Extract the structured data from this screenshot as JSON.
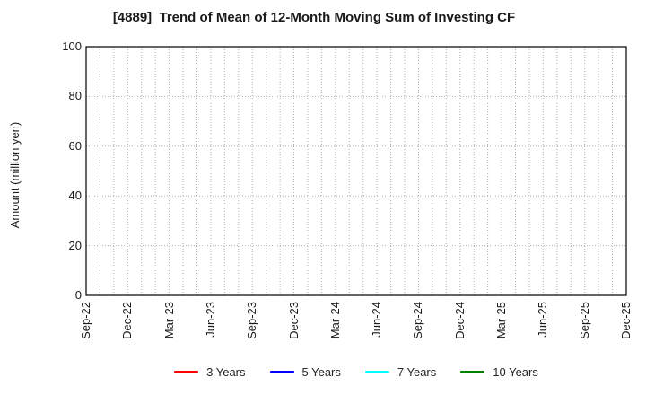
{
  "chart_data": {
    "type": "line",
    "title": "[4889]  Trend of Mean of 12-Month Moving Sum of Investing CF",
    "ylabel": "Amount (million yen)",
    "ylim": [
      0,
      100
    ],
    "yticks": [
      0,
      20,
      40,
      60,
      80,
      100
    ],
    "x_tick_labels": [
      "Sep-22",
      "Dec-22",
      "Mar-23",
      "Jun-23",
      "Sep-23",
      "Dec-23",
      "Mar-24",
      "Jun-24",
      "Sep-24",
      "Dec-24",
      "Mar-25",
      "Jun-25",
      "Sep-25",
      "Dec-25"
    ],
    "x_months_per_tick": 3,
    "grid": true,
    "gridline_color": "#b0b0b0",
    "frame_color": "#000000",
    "legend_position": "bottom",
    "series": [
      {
        "name": "3 Years",
        "color": "#ff0000",
        "values": []
      },
      {
        "name": "5 Years",
        "color": "#0000ff",
        "values": []
      },
      {
        "name": "7 Years",
        "color": "#00ffff",
        "values": []
      },
      {
        "name": "10 Years",
        "color": "#008000",
        "values": []
      }
    ]
  }
}
